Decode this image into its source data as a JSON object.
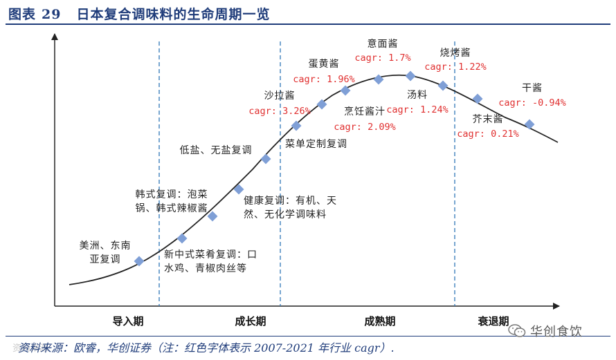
{
  "figure": {
    "label": "图表",
    "number": "29",
    "title": "日本复合调味料的生命周期一览"
  },
  "stages": [
    "导入期",
    "成长期",
    "成熟期",
    "衰退期"
  ],
  "nodes": [
    {
      "id": "n1",
      "lines": [
        "美洲、东南",
        "亚复调"
      ]
    },
    {
      "id": "n2",
      "lines": [
        "新中式菜肴复调：口",
        "水鸡、青椒肉丝等"
      ]
    },
    {
      "id": "n3",
      "lines": [
        "韩式复调：泡菜",
        "锅、韩式辣椒酱"
      ]
    },
    {
      "id": "n4",
      "lines": [
        "健康复调：有机、天",
        "然、无化学调味料"
      ]
    },
    {
      "id": "n5",
      "lines": [
        "低盐、无盐复调"
      ]
    },
    {
      "id": "n6",
      "lines": [
        "菜单定制复调"
      ]
    },
    {
      "id": "n7",
      "lines": [
        "沙拉酱"
      ],
      "cagr": "cagr: 3.26%"
    },
    {
      "id": "n8",
      "lines": [
        "烹饪酱汁"
      ],
      "cagr": "cagr: 2.09%"
    },
    {
      "id": "n9",
      "lines": [
        "蛋黄酱"
      ],
      "cagr": "cagr: 1.96%"
    },
    {
      "id": "n10",
      "lines": [
        "意面酱"
      ],
      "cagr": "cagr: 1.7%"
    },
    {
      "id": "n11",
      "lines": [
        "汤料"
      ],
      "cagr": "cagr: 1.24%"
    },
    {
      "id": "n12",
      "lines": [
        "烧烤酱"
      ],
      "cagr": "cagr: 1.22%"
    },
    {
      "id": "n13",
      "lines": [
        "芥末酱"
      ],
      "cagr": "cagr: 0.21%"
    },
    {
      "id": "n14",
      "lines": [
        "干酱"
      ],
      "cagr": "cagr: -0.94%"
    }
  ],
  "source": "资料来源：欧睿，华创证券（注：红色字体表示 2007-2021 年行业 cagr）.",
  "wechat_account": "华创食饮",
  "watermark": "资料来源",
  "colors": {
    "title": "#1f3c7a",
    "marker": "#7f9fd6",
    "cagr": "#e03030",
    "divider": "#2e75b6",
    "label": "#222222"
  }
}
